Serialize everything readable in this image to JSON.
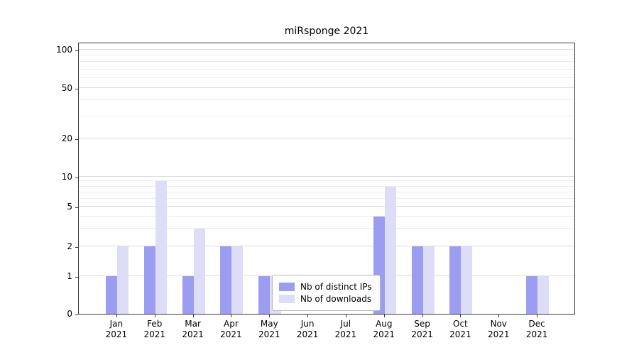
{
  "title": "miRsponge 2021",
  "chart_data": {
    "type": "bar",
    "title": "miRsponge 2021",
    "categories": [
      "Jan 2021",
      "Feb 2021",
      "Mar 2021",
      "Apr 2021",
      "May 2021",
      "Jun 2021",
      "Jul 2021",
      "Aug 2021",
      "Sep 2021",
      "Oct 2021",
      "Nov 2021",
      "Dec 2021"
    ],
    "series": [
      {
        "name": "Nb of distinct IPs",
        "color": "#9c9cf0",
        "values": [
          1,
          2,
          1,
          2,
          1,
          0,
          0,
          4,
          2,
          2,
          0,
          1
        ]
      },
      {
        "name": "Nb of downloads",
        "color": "#ddddf8",
        "values": [
          2,
          9,
          3,
          2,
          1,
          0,
          0,
          8,
          2,
          2,
          0,
          1
        ]
      }
    ],
    "y_ticks": [
      0,
      1,
      2,
      5,
      10,
      20,
      50,
      100
    ],
    "y_minor_gridlines": [
      3,
      4,
      6,
      7,
      8,
      9,
      30,
      40,
      60,
      70,
      80,
      90
    ],
    "ylim": [
      0,
      100
    ],
    "y_scale": "log-like with zero baseline",
    "xlabel": "",
    "ylabel": "",
    "grid": "horizontal",
    "legend_position": "inside lower center"
  }
}
